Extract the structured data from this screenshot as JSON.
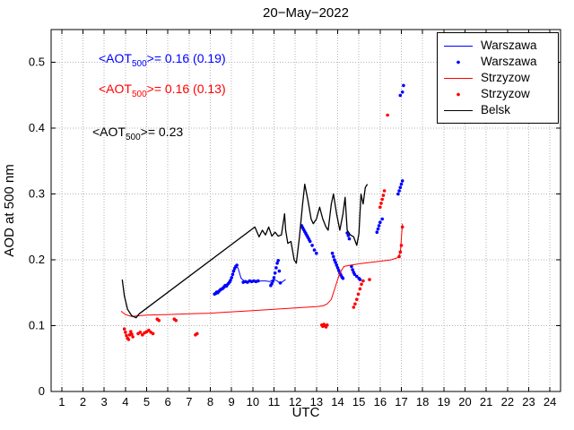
{
  "title": "20−May−2022",
  "axes": {
    "xlabel": "UTC",
    "ylabel": "AOD at 500 nm"
  },
  "annotations": [
    {
      "prefix": "<AOT",
      "sub": "500",
      "suffix": ">= 0.16 (0.19)",
      "color": "#0000ff"
    },
    {
      "prefix": "<AOT",
      "sub": "500",
      "suffix": ">= 0.16 (0.13)",
      "color": "#ff0000"
    },
    {
      "prefix": "<AOT",
      "sub": "500",
      "suffix": ">= 0.23",
      "color": "#000000"
    }
  ],
  "legend": {
    "position": "top-right",
    "entries": [
      {
        "label": "Warszawa",
        "type": "line",
        "color": "#0000ff"
      },
      {
        "label": "Warszawa",
        "type": "dot",
        "color": "#0000ff"
      },
      {
        "label": "Strzyzow",
        "type": "line",
        "color": "#ff0000"
      },
      {
        "label": "Strzyzow",
        "type": "dot",
        "color": "#ff0000"
      },
      {
        "label": "Belsk",
        "type": "line",
        "color": "#000000"
      }
    ]
  },
  "chart_data": {
    "type": "line+scatter",
    "title": "20−May−2022",
    "xlabel": "UTC",
    "ylabel": "AOD at 500 nm",
    "xlim": [
      0.5,
      24.5
    ],
    "ylim": [
      0,
      0.55
    ],
    "xticks": [
      1,
      2,
      3,
      4,
      5,
      6,
      7,
      8,
      9,
      10,
      11,
      12,
      13,
      14,
      15,
      16,
      17,
      18,
      19,
      20,
      21,
      22,
      23,
      24
    ],
    "yticks": [
      0,
      0.1,
      0.2,
      0.3,
      0.4,
      0.5
    ],
    "grid": true,
    "grid_style": "dotted",
    "legend_position": "top-right",
    "series": [
      {
        "name": "Warszawa",
        "type": "line",
        "color": "#0000ff",
        "width": 1,
        "points": [
          [
            8.3,
            0.149
          ],
          [
            8.45,
            0.153
          ],
          [
            8.6,
            0.157
          ],
          [
            8.75,
            0.161
          ],
          [
            8.9,
            0.166
          ],
          [
            9.0,
            0.172
          ],
          [
            9.1,
            0.181
          ],
          [
            9.2,
            0.19
          ],
          [
            9.3,
            0.188
          ],
          [
            9.45,
            0.172
          ],
          [
            9.6,
            0.168
          ],
          [
            9.8,
            0.167
          ],
          [
            10.0,
            0.168
          ],
          [
            10.2,
            0.167
          ],
          [
            10.4,
            0.168
          ],
          [
            10.6,
            0.168
          ],
          [
            10.8,
            0.167
          ],
          [
            11.0,
            0.17
          ],
          [
            11.15,
            0.168
          ],
          [
            11.3,
            0.164
          ],
          [
            11.45,
            0.168
          ],
          [
            11.55,
            0.17
          ]
        ]
      },
      {
        "name": "Warszawa",
        "type": "scatter",
        "color": "#0000ff",
        "size": 1.8,
        "points": [
          [
            8.2,
            0.148
          ],
          [
            8.25,
            0.149
          ],
          [
            8.3,
            0.151
          ],
          [
            8.35,
            0.15
          ],
          [
            8.4,
            0.152
          ],
          [
            8.45,
            0.154
          ],
          [
            8.5,
            0.155
          ],
          [
            8.55,
            0.156
          ],
          [
            8.6,
            0.157
          ],
          [
            8.65,
            0.159
          ],
          [
            8.7,
            0.161
          ],
          [
            8.75,
            0.16
          ],
          [
            8.8,
            0.162
          ],
          [
            8.85,
            0.164
          ],
          [
            8.9,
            0.166
          ],
          [
            8.95,
            0.169
          ],
          [
            9.0,
            0.173
          ],
          [
            9.05,
            0.178
          ],
          [
            9.1,
            0.183
          ],
          [
            9.15,
            0.187
          ],
          [
            9.2,
            0.19
          ],
          [
            9.25,
            0.192
          ],
          [
            9.55,
            0.166
          ],
          [
            9.65,
            0.167
          ],
          [
            9.75,
            0.166
          ],
          [
            9.85,
            0.168
          ],
          [
            9.95,
            0.167
          ],
          [
            10.05,
            0.168
          ],
          [
            10.15,
            0.167
          ],
          [
            10.25,
            0.168
          ],
          [
            10.85,
            0.161
          ],
          [
            10.9,
            0.164
          ],
          [
            10.95,
            0.168
          ],
          [
            11.0,
            0.173
          ],
          [
            11.05,
            0.18
          ],
          [
            11.1,
            0.188
          ],
          [
            11.15,
            0.195
          ],
          [
            11.2,
            0.199
          ],
          [
            11.25,
            0.183
          ],
          [
            11.3,
            0.165
          ],
          [
            12.3,
            0.252
          ],
          [
            12.35,
            0.249
          ],
          [
            12.4,
            0.246
          ],
          [
            12.45,
            0.243
          ],
          [
            12.5,
            0.24
          ],
          [
            12.55,
            0.237
          ],
          [
            12.6,
            0.234
          ],
          [
            12.65,
            0.231
          ],
          [
            12.7,
            0.228
          ],
          [
            12.8,
            0.222
          ],
          [
            12.9,
            0.215
          ],
          [
            13.0,
            0.21
          ],
          [
            13.75,
            0.21
          ],
          [
            13.8,
            0.205
          ],
          [
            13.85,
            0.2
          ],
          [
            13.9,
            0.196
          ],
          [
            13.95,
            0.192
          ],
          [
            14.0,
            0.188
          ],
          [
            14.05,
            0.184
          ],
          [
            14.1,
            0.18
          ],
          [
            14.15,
            0.177
          ],
          [
            14.2,
            0.174
          ],
          [
            14.25,
            0.172
          ],
          [
            14.45,
            0.241
          ],
          [
            14.5,
            0.237
          ],
          [
            14.55,
            0.232
          ],
          [
            14.65,
            0.19
          ],
          [
            14.7,
            0.185
          ],
          [
            14.75,
            0.181
          ],
          [
            14.8,
            0.178
          ],
          [
            14.9,
            0.175
          ],
          [
            15.0,
            0.172
          ],
          [
            15.05,
            0.17
          ],
          [
            15.85,
            0.242
          ],
          [
            15.9,
            0.247
          ],
          [
            15.95,
            0.252
          ],
          [
            16.0,
            0.257
          ],
          [
            16.1,
            0.262
          ],
          [
            16.85,
            0.3
          ],
          [
            16.9,
            0.305
          ],
          [
            16.95,
            0.31
          ],
          [
            17.0,
            0.315
          ],
          [
            17.05,
            0.32
          ],
          [
            16.95,
            0.45
          ],
          [
            17.05,
            0.455
          ],
          [
            17.1,
            0.465
          ]
        ]
      },
      {
        "name": "Strzyzow",
        "type": "line",
        "color": "#ff0000",
        "width": 1,
        "points": [
          [
            3.8,
            0.122
          ],
          [
            4.0,
            0.117
          ],
          [
            4.3,
            0.114
          ],
          [
            4.6,
            0.115
          ],
          [
            5.0,
            0.116
          ],
          [
            6.0,
            0.117
          ],
          [
            7.0,
            0.118
          ],
          [
            8.0,
            0.119
          ],
          [
            9.0,
            0.121
          ],
          [
            10.0,
            0.123
          ],
          [
            11.0,
            0.125
          ],
          [
            12.0,
            0.127
          ],
          [
            13.0,
            0.129
          ],
          [
            13.3,
            0.13
          ],
          [
            13.5,
            0.133
          ],
          [
            13.7,
            0.14
          ],
          [
            13.9,
            0.16
          ],
          [
            14.1,
            0.18
          ],
          [
            14.3,
            0.19
          ],
          [
            14.6,
            0.192
          ],
          [
            15.0,
            0.194
          ],
          [
            15.5,
            0.196
          ],
          [
            16.0,
            0.198
          ],
          [
            16.5,
            0.2
          ],
          [
            16.8,
            0.203
          ],
          [
            16.95,
            0.21
          ],
          [
            17.05,
            0.255
          ]
        ]
      },
      {
        "name": "Strzyzow",
        "type": "scatter",
        "color": "#ff0000",
        "size": 1.8,
        "points": [
          [
            3.95,
            0.095
          ],
          [
            4.0,
            0.09
          ],
          [
            4.05,
            0.085
          ],
          [
            4.1,
            0.081
          ],
          [
            4.15,
            0.079
          ],
          [
            4.2,
            0.086
          ],
          [
            4.25,
            0.091
          ],
          [
            4.3,
            0.087
          ],
          [
            4.35,
            0.083
          ],
          [
            4.6,
            0.088
          ],
          [
            4.7,
            0.09
          ],
          [
            4.8,
            0.086
          ],
          [
            4.9,
            0.089
          ],
          [
            5.0,
            0.091
          ],
          [
            5.1,
            0.093
          ],
          [
            5.2,
            0.09
          ],
          [
            5.3,
            0.088
          ],
          [
            5.5,
            0.11
          ],
          [
            5.58,
            0.108
          ],
          [
            6.3,
            0.11
          ],
          [
            6.38,
            0.108
          ],
          [
            7.3,
            0.086
          ],
          [
            7.38,
            0.088
          ],
          [
            13.25,
            0.101
          ],
          [
            13.3,
            0.099
          ],
          [
            13.35,
            0.102
          ],
          [
            13.4,
            0.1
          ],
          [
            13.45,
            0.098
          ],
          [
            13.5,
            0.101
          ],
          [
            14.75,
            0.128
          ],
          [
            14.82,
            0.133
          ],
          [
            14.9,
            0.14
          ],
          [
            14.97,
            0.148
          ],
          [
            15.05,
            0.156
          ],
          [
            15.12,
            0.163
          ],
          [
            15.2,
            0.168
          ],
          [
            15.5,
            0.17
          ],
          [
            16.0,
            0.28
          ],
          [
            16.05,
            0.286
          ],
          [
            16.1,
            0.292
          ],
          [
            16.15,
            0.298
          ],
          [
            16.2,
            0.305
          ],
          [
            16.35,
            0.42
          ],
          [
            16.9,
            0.205
          ],
          [
            16.95,
            0.212
          ],
          [
            17.0,
            0.222
          ],
          [
            17.05,
            0.25
          ]
        ]
      },
      {
        "name": "Belsk",
        "type": "line",
        "color": "#000000",
        "width": 1.3,
        "points": [
          [
            3.85,
            0.17
          ],
          [
            3.95,
            0.145
          ],
          [
            4.1,
            0.125
          ],
          [
            4.3,
            0.115
          ],
          [
            4.5,
            0.112
          ],
          [
            4.65,
            0.118
          ],
          [
            10.1,
            0.25
          ],
          [
            10.3,
            0.235
          ],
          [
            10.45,
            0.245
          ],
          [
            10.6,
            0.238
          ],
          [
            10.75,
            0.25
          ],
          [
            10.9,
            0.236
          ],
          [
            11.05,
            0.242
          ],
          [
            11.2,
            0.236
          ],
          [
            11.35,
            0.238
          ],
          [
            11.5,
            0.27
          ],
          [
            11.55,
            0.245
          ],
          [
            11.65,
            0.225
          ],
          [
            11.8,
            0.228
          ],
          [
            11.95,
            0.2
          ],
          [
            12.05,
            0.195
          ],
          [
            12.2,
            0.235
          ],
          [
            12.35,
            0.285
          ],
          [
            12.45,
            0.315
          ],
          [
            12.6,
            0.29
          ],
          [
            12.75,
            0.262
          ],
          [
            12.85,
            0.255
          ],
          [
            13.0,
            0.262
          ],
          [
            13.15,
            0.28
          ],
          [
            13.3,
            0.262
          ],
          [
            13.45,
            0.25
          ],
          [
            13.55,
            0.245
          ],
          [
            13.7,
            0.285
          ],
          [
            13.8,
            0.3
          ],
          [
            13.95,
            0.27
          ],
          [
            14.1,
            0.245
          ],
          [
            14.25,
            0.27
          ],
          [
            14.35,
            0.295
          ],
          [
            14.45,
            0.245
          ],
          [
            14.6,
            0.238
          ],
          [
            14.75,
            0.235
          ],
          [
            14.9,
            0.222
          ],
          [
            15.0,
            0.24
          ],
          [
            15.1,
            0.3
          ],
          [
            15.2,
            0.285
          ],
          [
            15.3,
            0.31
          ],
          [
            15.4,
            0.315
          ]
        ]
      }
    ]
  }
}
